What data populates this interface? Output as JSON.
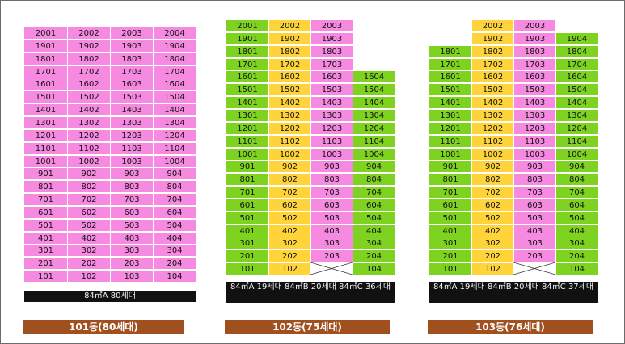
{
  "colors": {
    "pink": "#f58ae0",
    "green": "#7ed321",
    "yellow": "#ffd43b",
    "label_bg": "#a0501e",
    "info_bg": "#111111"
  },
  "buildings": [
    {
      "name": "101동(80세대)",
      "info": "84㎡A 80세대",
      "top_floor": 20,
      "floors": [
        20,
        19,
        18,
        17,
        16,
        15,
        14,
        13,
        12,
        11,
        10,
        9,
        8,
        7,
        6,
        5,
        4,
        3,
        2,
        1
      ],
      "unit_colors": [
        "pink",
        "pink",
        "pink",
        "pink"
      ],
      "missing": [],
      "cross": []
    },
    {
      "name": "102동(75세대)",
      "info": "84㎡A 19세대 84㎡B 20세대 84㎡C 36세대",
      "top_floor": 20,
      "floors": [
        20,
        19,
        18,
        17,
        16,
        15,
        14,
        13,
        12,
        11,
        10,
        9,
        8,
        7,
        6,
        5,
        4,
        3,
        2,
        1
      ],
      "unit_colors": [
        "green",
        "yellow",
        "pink",
        "green"
      ],
      "missing": [
        "2004",
        "1904",
        "1804",
        "1704"
      ],
      "cross": [
        "103"
      ]
    },
    {
      "name": "103동(76세대)",
      "info": "84㎡A 19세대 84㎡B 20세대 84㎡C 37세대",
      "top_floor": 20,
      "floors": [
        20,
        19,
        18,
        17,
        16,
        15,
        14,
        13,
        12,
        11,
        10,
        9,
        8,
        7,
        6,
        5,
        4,
        3,
        2,
        1
      ],
      "unit_colors": [
        "green",
        "yellow",
        "pink",
        "green"
      ],
      "missing": [
        "2001",
        "2004",
        "1901"
      ],
      "cross": [
        "103"
      ]
    }
  ]
}
